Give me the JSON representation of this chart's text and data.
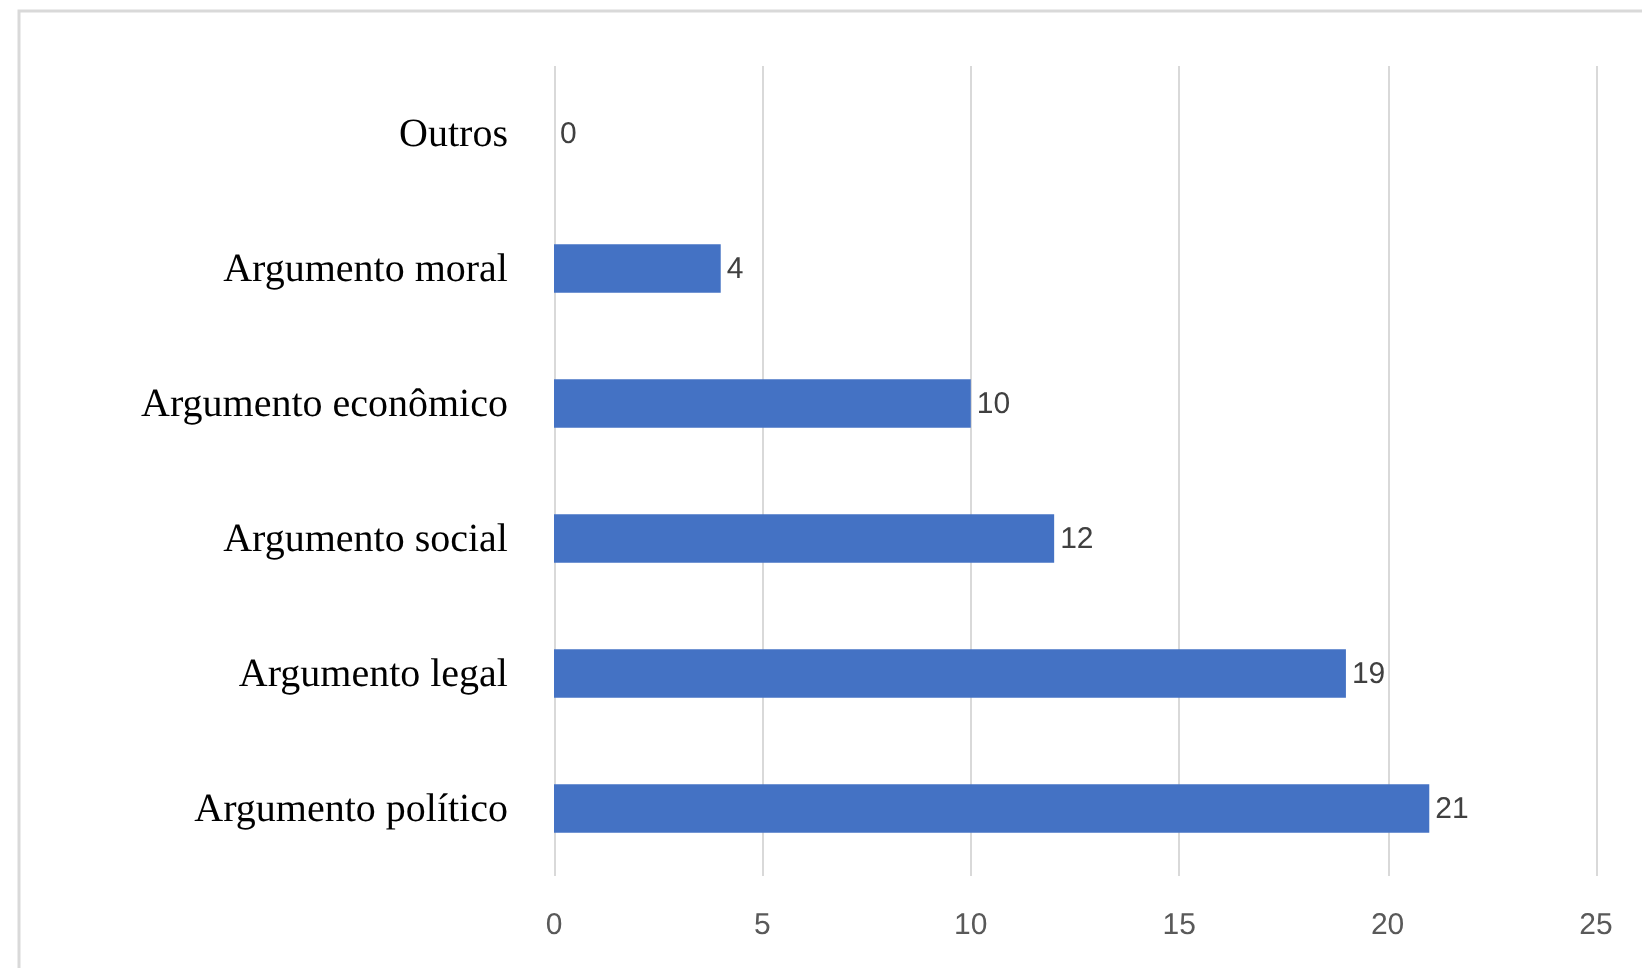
{
  "chart_data": {
    "type": "bar",
    "orientation": "horizontal",
    "categories": [
      "Outros",
      "Argumento moral",
      "Argumento econômico",
      "Argumento social",
      "Argumento legal",
      "Argumento político"
    ],
    "values": [
      0,
      4,
      10,
      12,
      19,
      21
    ],
    "color": "#4472c4",
    "xlim": [
      0,
      25
    ],
    "xticks": [
      0,
      5,
      10,
      15,
      20,
      25
    ],
    "grid": "x",
    "data_labels": true
  }
}
